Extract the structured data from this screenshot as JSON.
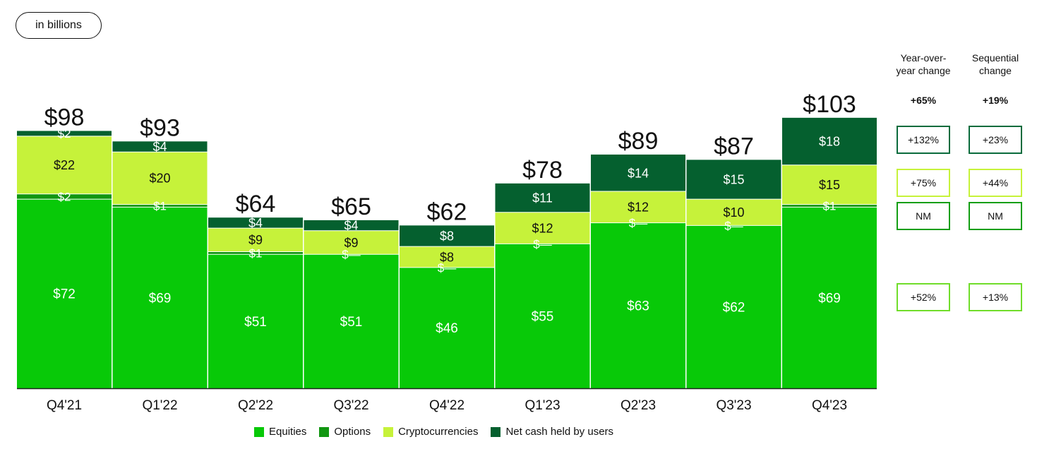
{
  "unit_label": "in billions",
  "colors": {
    "equities": "#08c908",
    "options": "#119611",
    "crypto": "#c6f23a",
    "cash": "#05602f",
    "box_cash": "#0a6b3c",
    "box_crypto": "#c6f23a",
    "box_options": "#139e13",
    "box_equities": "#70dd2a"
  },
  "chart_data": {
    "type": "bar",
    "stacked": true,
    "categories": [
      "Q4'21",
      "Q1'22",
      "Q2'22",
      "Q3'22",
      "Q4'22",
      "Q1'23",
      "Q2'23",
      "Q3'23",
      "Q4'23"
    ],
    "series": [
      {
        "name": "Equities",
        "values": [
          72,
          69,
          51,
          51,
          46,
          55,
          63,
          62,
          69
        ],
        "labels": [
          "$72",
          "$69",
          "$51",
          "$51",
          "$46",
          "$55",
          "$63",
          "$62",
          "$69"
        ]
      },
      {
        "name": "Options",
        "values": [
          2,
          1,
          1,
          0,
          0,
          0,
          0,
          0,
          1
        ],
        "labels": [
          "$2",
          "$1",
          "$1",
          "$—",
          "$—",
          "$—",
          "$—",
          "$—",
          "$1"
        ]
      },
      {
        "name": "Cryptocurrencies",
        "values": [
          22,
          20,
          9,
          9,
          8,
          12,
          12,
          10,
          15
        ],
        "labels": [
          "$22",
          "$20",
          "$9",
          "$9",
          "$8",
          "$12",
          "$12",
          "$10",
          "$15"
        ]
      },
      {
        "name": "Net cash held by users",
        "values": [
          2,
          4,
          4,
          4,
          8,
          11,
          14,
          15,
          18
        ],
        "labels": [
          "$2",
          "$4",
          "$4",
          "$4",
          "$8",
          "$11",
          "$14",
          "$15",
          "$18"
        ]
      }
    ],
    "totals": [
      "$98",
      "$93",
      "$64",
      "$65",
      "$62",
      "$78",
      "$89",
      "$87",
      "$103"
    ],
    "totals_values": [
      98,
      93,
      64,
      65,
      62,
      78,
      89,
      87,
      103
    ],
    "ylim": [
      0,
      103
    ]
  },
  "changes": {
    "yoy_header": "Year-over-year change",
    "seq_header": "Sequential change",
    "total": {
      "yoy": "+65%",
      "seq": "+19%"
    },
    "rows": [
      {
        "series": "cash",
        "yoy": "+132%",
        "seq": "+23%"
      },
      {
        "series": "crypto",
        "yoy": "+75%",
        "seq": "+44%"
      },
      {
        "series": "options",
        "yoy": "NM",
        "seq": "NM"
      },
      {
        "series": "equities",
        "yoy": "+52%",
        "seq": "+13%"
      }
    ]
  },
  "legend": [
    {
      "label": "Equities",
      "series": "equities"
    },
    {
      "label": "Options",
      "series": "options"
    },
    {
      "label": "Cryptocurrencies",
      "series": "crypto"
    },
    {
      "label": "Net cash held by users",
      "series": "cash"
    }
  ]
}
